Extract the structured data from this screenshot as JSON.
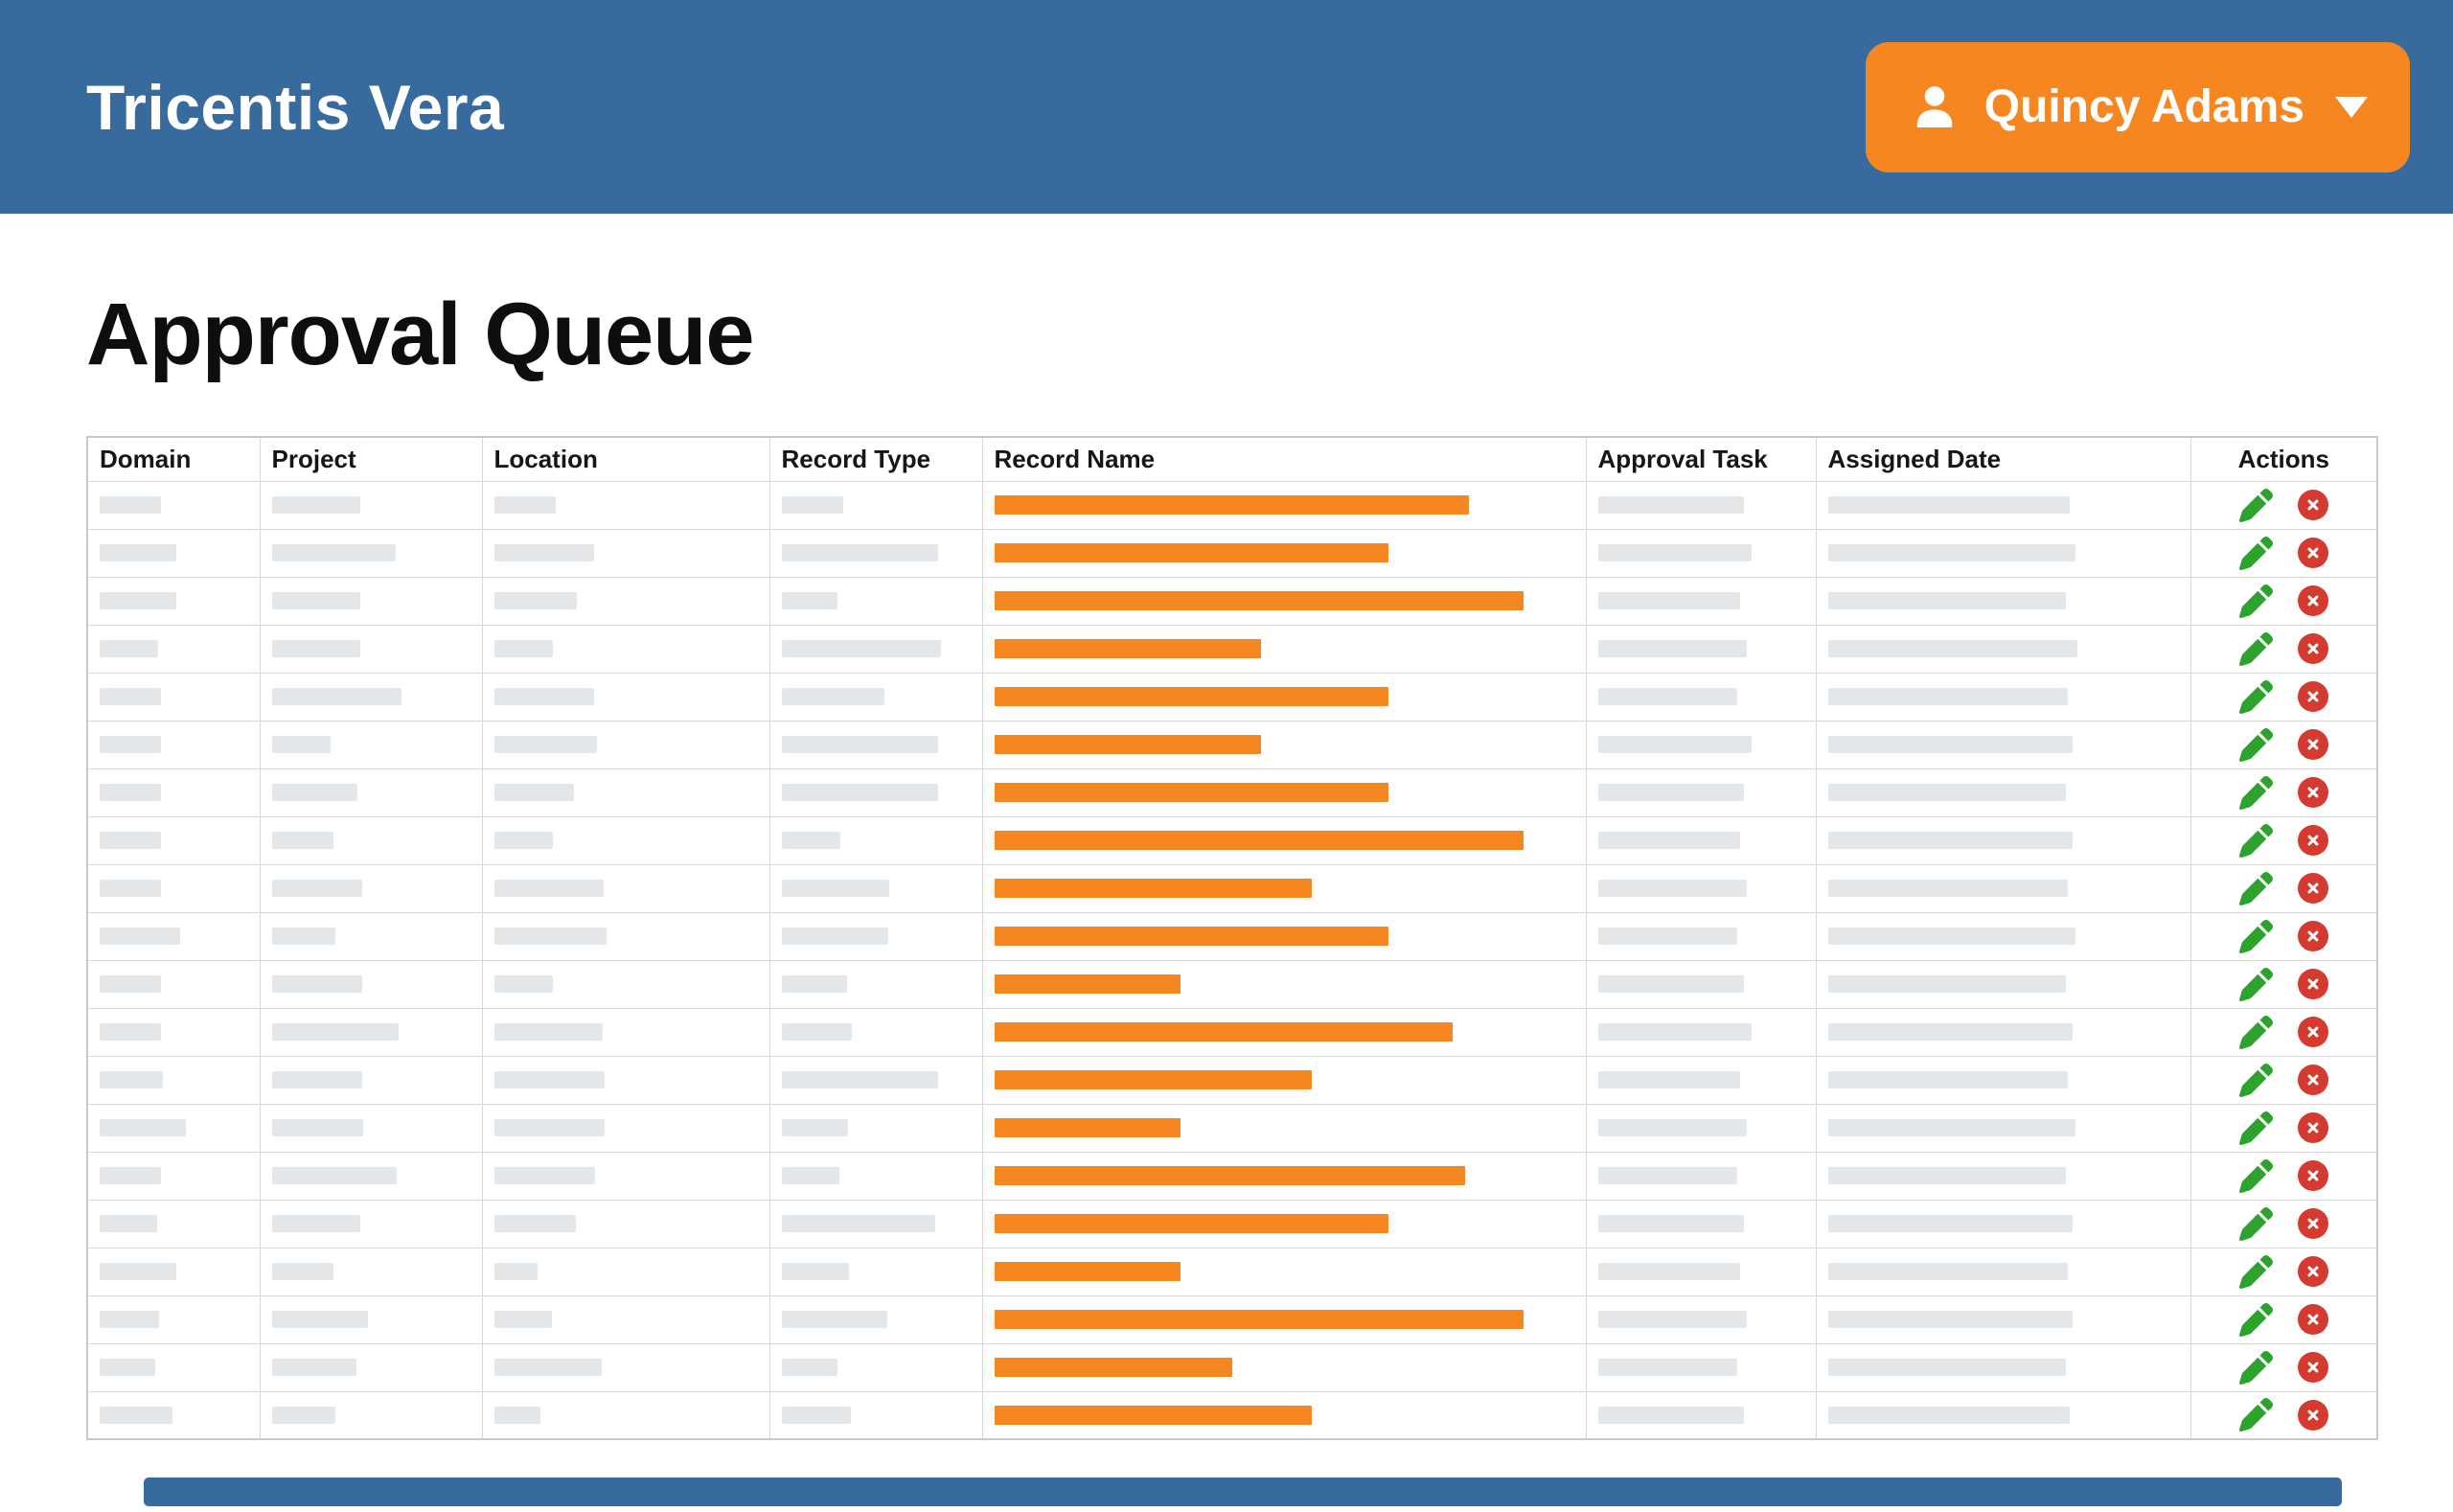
{
  "header": {
    "logo": "Tricentis Vera",
    "user": {
      "name": "Quincy Adams"
    }
  },
  "page": {
    "title": "Approval Queue"
  },
  "icons": {
    "user": "user-icon",
    "caret": "caret-down-icon",
    "edit": "pen-icon",
    "reject": "circle-x-icon"
  },
  "colors": {
    "header_blue": "#376B9E",
    "accent_orange": "#F6861F",
    "skeleton_gray": "#E4E7E9",
    "edit_green": "#2BA32C",
    "reject_red": "#D43A2F",
    "border_gray": "#D8D8D8"
  },
  "table": {
    "columns": [
      {
        "id": "domain",
        "label": "Domain"
      },
      {
        "id": "project",
        "label": "Project"
      },
      {
        "id": "location",
        "label": "Location"
      },
      {
        "id": "record_type",
        "label": "Record Type"
      },
      {
        "id": "record_name",
        "label": "Record Name"
      },
      {
        "id": "approval_task",
        "label": "Approval Task"
      },
      {
        "id": "assigned_date",
        "label": "Assigned Date"
      },
      {
        "id": "actions",
        "label": "Actions"
      }
    ],
    "rows": [
      {
        "domain": 64,
        "project": 92,
        "location": 64,
        "record_type": 64,
        "record_name": 495,
        "approval_task": 152,
        "assigned_date": 252
      },
      {
        "domain": 80,
        "project": 129,
        "location": 104,
        "record_type": 163,
        "record_name": 411,
        "approval_task": 160,
        "assigned_date": 258
      },
      {
        "domain": 80,
        "project": 92,
        "location": 86,
        "record_type": 58,
        "record_name": 552,
        "approval_task": 148,
        "assigned_date": 248
      },
      {
        "domain": 61,
        "project": 92,
        "location": 61,
        "record_type": 166,
        "record_name": 278,
        "approval_task": 155,
        "assigned_date": 260
      },
      {
        "domain": 64,
        "project": 135,
        "location": 104,
        "record_type": 107,
        "record_name": 411,
        "approval_task": 145,
        "assigned_date": 250
      },
      {
        "domain": 64,
        "project": 61,
        "location": 107,
        "record_type": 163,
        "record_name": 278,
        "approval_task": 160,
        "assigned_date": 255
      },
      {
        "domain": 64,
        "project": 89,
        "location": 83,
        "record_type": 163,
        "record_name": 411,
        "approval_task": 152,
        "assigned_date": 248
      },
      {
        "domain": 64,
        "project": 64,
        "location": 61,
        "record_type": 61,
        "record_name": 552,
        "approval_task": 148,
        "assigned_date": 255
      },
      {
        "domain": 64,
        "project": 94,
        "location": 114,
        "record_type": 112,
        "record_name": 331,
        "approval_task": 155,
        "assigned_date": 250
      },
      {
        "domain": 84,
        "project": 66,
        "location": 117,
        "record_type": 111,
        "record_name": 411,
        "approval_task": 145,
        "assigned_date": 258
      },
      {
        "domain": 64,
        "project": 94,
        "location": 61,
        "record_type": 68,
        "record_name": 194,
        "approval_task": 152,
        "assigned_date": 248
      },
      {
        "domain": 64,
        "project": 132,
        "location": 113,
        "record_type": 73,
        "record_name": 478,
        "approval_task": 160,
        "assigned_date": 255
      },
      {
        "domain": 66,
        "project": 94,
        "location": 115,
        "record_type": 163,
        "record_name": 331,
        "approval_task": 148,
        "assigned_date": 250
      },
      {
        "domain": 90,
        "project": 95,
        "location": 115,
        "record_type": 69,
        "record_name": 194,
        "approval_task": 155,
        "assigned_date": 258
      },
      {
        "domain": 64,
        "project": 130,
        "location": 105,
        "record_type": 60,
        "record_name": 491,
        "approval_task": 145,
        "assigned_date": 248
      },
      {
        "domain": 60,
        "project": 92,
        "location": 85,
        "record_type": 160,
        "record_name": 411,
        "approval_task": 152,
        "assigned_date": 255
      },
      {
        "domain": 80,
        "project": 64,
        "location": 45,
        "record_type": 70,
        "record_name": 194,
        "approval_task": 148,
        "assigned_date": 250
      },
      {
        "domain": 62,
        "project": 100,
        "location": 60,
        "record_type": 110,
        "record_name": 552,
        "approval_task": 155,
        "assigned_date": 255
      },
      {
        "domain": 58,
        "project": 88,
        "location": 112,
        "record_type": 58,
        "record_name": 248,
        "approval_task": 145,
        "assigned_date": 248
      },
      {
        "domain": 76,
        "project": 66,
        "location": 48,
        "record_type": 72,
        "record_name": 331,
        "approval_task": 152,
        "assigned_date": 252
      }
    ]
  }
}
